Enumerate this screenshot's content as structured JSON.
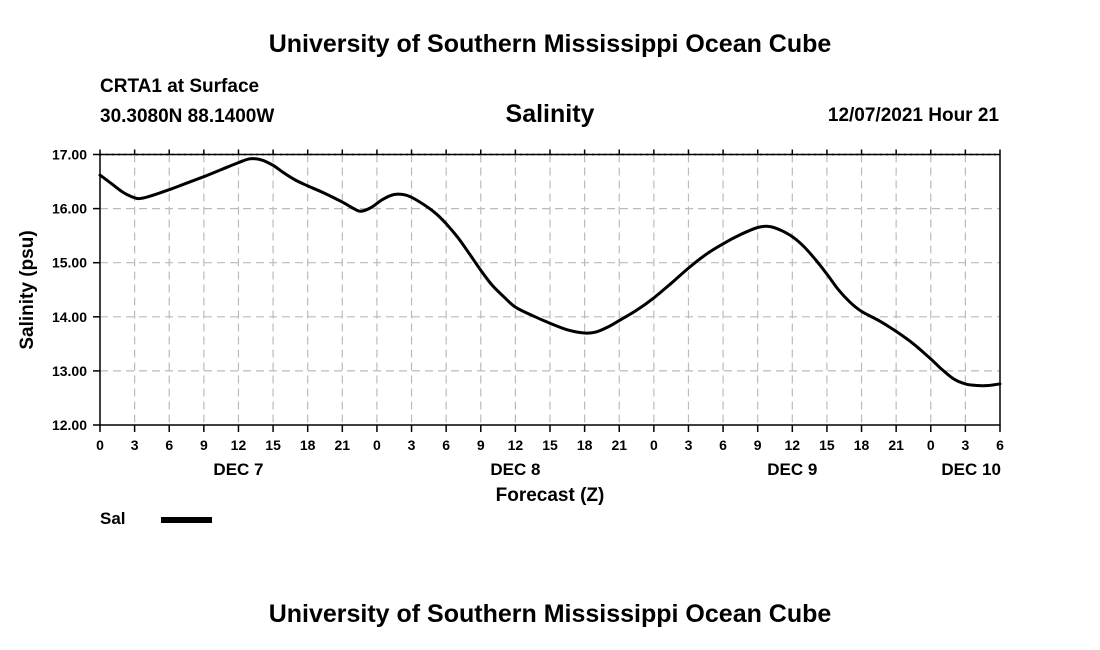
{
  "header": {
    "title": "University of Southern Mississippi Ocean Cube",
    "station": "CRTA1 at Surface",
    "coords": "30.3080N  88.1400W",
    "chart_title": "Salinity",
    "run_time": "12/07/2021 Hour 21"
  },
  "footer": {
    "title": "University of Southern Mississippi Ocean Cube"
  },
  "legend": {
    "label": "Sal"
  },
  "colors": {
    "line": "#000000",
    "grid": "#bbbbbb"
  },
  "chart_data": {
    "type": "line",
    "title": "Salinity",
    "xlabel": "Forecast (Z)",
    "ylabel": "Salinity (psu)",
    "xlim": [
      0,
      78
    ],
    "ylim": [
      12.0,
      17.0
    ],
    "ytick_values": [
      12.0,
      13.0,
      14.0,
      15.0,
      16.0,
      17.0
    ],
    "ytick_labels": [
      "12.00",
      "13.00",
      "14.00",
      "15.00",
      "16.00",
      "17.00"
    ],
    "xtick_values": [
      0,
      3,
      6,
      9,
      12,
      15,
      18,
      21,
      24,
      27,
      30,
      33,
      36,
      39,
      42,
      45,
      48,
      51,
      54,
      57,
      60,
      63,
      66,
      69,
      72,
      75,
      78
    ],
    "xtick_labels": [
      "0",
      "3",
      "6",
      "9",
      "12",
      "15",
      "18",
      "21",
      "0",
      "3",
      "6",
      "9",
      "12",
      "15",
      "18",
      "21",
      "0",
      "3",
      "6",
      "9",
      "12",
      "15",
      "18",
      "21",
      "0",
      "3",
      "6"
    ],
    "day_labels": [
      {
        "label": "DEC 7",
        "x": 12
      },
      {
        "label": "DEC 8",
        "x": 36
      },
      {
        "label": "DEC 9",
        "x": 60
      },
      {
        "label": "DEC 10",
        "x": 75.5
      }
    ],
    "grid": true,
    "series": [
      {
        "name": "Sal",
        "x": [
          0,
          1,
          2,
          3,
          3.6,
          4.5,
          6,
          7.5,
          9,
          10.5,
          12,
          13,
          14,
          15,
          16,
          17,
          18,
          19.5,
          21,
          22,
          22.6,
          23.5,
          24.5,
          25.5,
          26.5,
          27.5,
          29,
          30,
          31,
          32,
          33,
          34,
          35,
          36,
          37.5,
          39,
          40.5,
          42,
          43,
          44,
          45,
          46.5,
          48,
          49.5,
          51,
          52.5,
          54,
          55.5,
          57,
          58,
          59,
          60,
          61,
          62,
          63,
          64,
          65,
          66,
          67.5,
          69,
          70.5,
          72,
          73,
          74,
          75,
          76,
          77,
          78
        ],
        "y": [
          16.62,
          16.46,
          16.3,
          16.2,
          16.19,
          16.24,
          16.35,
          16.47,
          16.59,
          16.72,
          16.85,
          16.92,
          16.9,
          16.8,
          16.65,
          16.52,
          16.42,
          16.28,
          16.12,
          16.0,
          15.95,
          16.02,
          16.17,
          16.26,
          16.25,
          16.15,
          15.93,
          15.72,
          15.47,
          15.17,
          14.86,
          14.58,
          14.37,
          14.18,
          14.02,
          13.88,
          13.76,
          13.7,
          13.72,
          13.81,
          13.93,
          14.12,
          14.35,
          14.62,
          14.9,
          15.15,
          15.35,
          15.52,
          15.65,
          15.67,
          15.6,
          15.48,
          15.3,
          15.06,
          14.79,
          14.5,
          14.27,
          14.1,
          13.93,
          13.73,
          13.5,
          13.22,
          13.02,
          12.85,
          12.76,
          12.73,
          12.73,
          12.76
        ]
      }
    ]
  }
}
